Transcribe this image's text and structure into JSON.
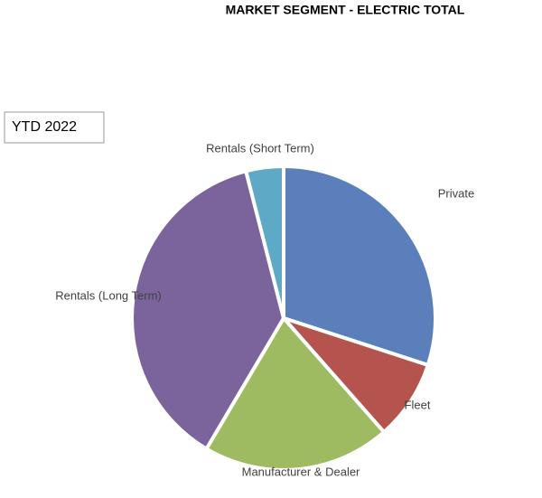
{
  "chart_data": {
    "type": "pie",
    "title": "MARKET SEGMENT - ELECTRIC TOTAL",
    "annotation": "YTD 2022",
    "categories": [
      "Private",
      "Fleet",
      "Manufacturer & Dealer",
      "Rentals (Long Term)",
      "Rentals (Short Term)"
    ],
    "values": [
      30,
      8.5,
      20,
      37.5,
      4
    ],
    "colors": [
      "#5a7fbb",
      "#b5544e",
      "#9fbb62",
      "#7b649c",
      "#5ea9c6"
    ]
  }
}
